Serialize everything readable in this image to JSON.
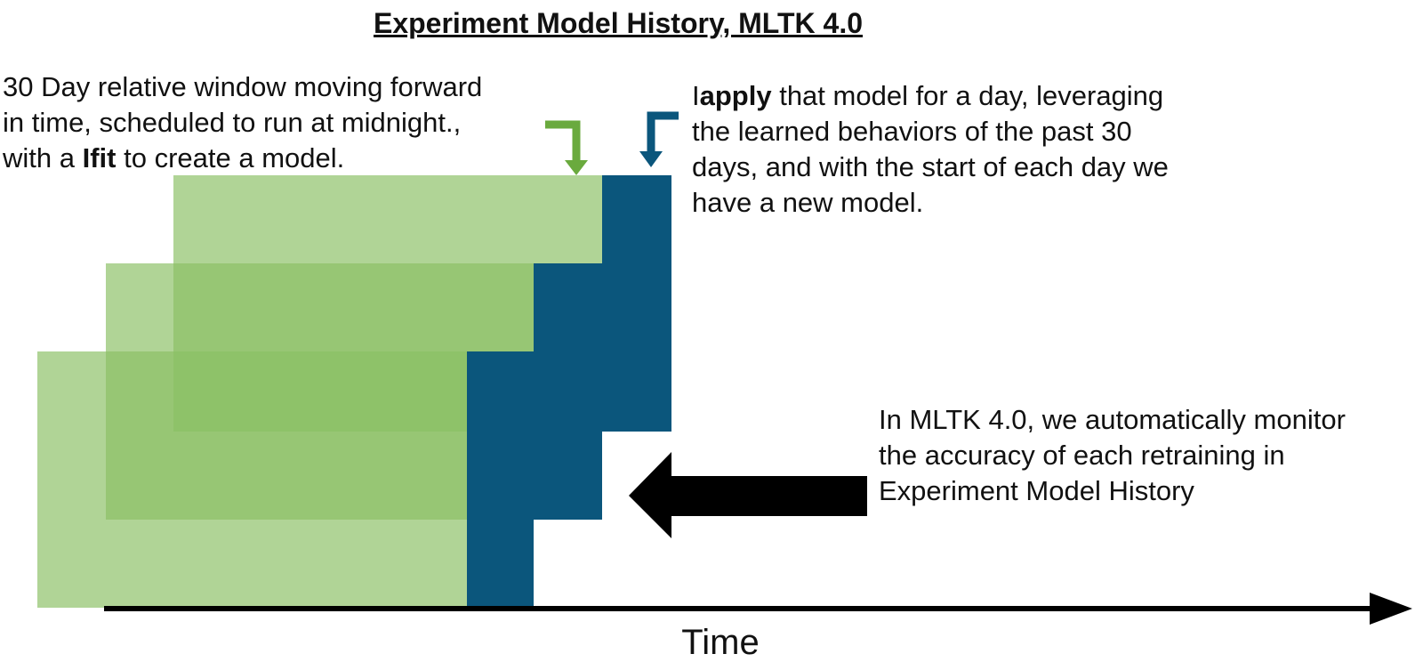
{
  "title": "Experiment Model History, MLTK 4.0",
  "notes": {
    "fit": {
      "line1": "30 Day relative window moving forward",
      "line2": "in time, scheduled to run at midnight.,",
      "line3_pre": "with a ",
      "line3_bold": "Ifit",
      "line3_post": " to create a model."
    },
    "apply": {
      "lead": "I",
      "bold": "apply",
      "rest_line1": " that model for a day, leveraging",
      "line2": "the learned behaviors of the past 30",
      "line3": "days, and with the start of each day we",
      "line4": "have a new model."
    },
    "monitor": {
      "line1": "In MLTK 4.0, we automatically monitor",
      "line2": "the accuracy of each retraining in",
      "line3": "Experiment Model History"
    }
  },
  "axis_label": "Time",
  "colors": {
    "train_window": "#8bc064",
    "train_opacity": 0.68,
    "apply_day": "#0b567c",
    "fit_arrow": "#6aaa3e",
    "apply_arrow": "#0b567c",
    "big_arrow": "#000000",
    "axis": "#000000"
  },
  "icons": {
    "fit_pointer": "bent-down-arrow-icon",
    "apply_pointer": "bent-down-arrow-icon",
    "monitor_pointer": "left-arrow-icon",
    "time_axis": "right-arrow-icon"
  }
}
